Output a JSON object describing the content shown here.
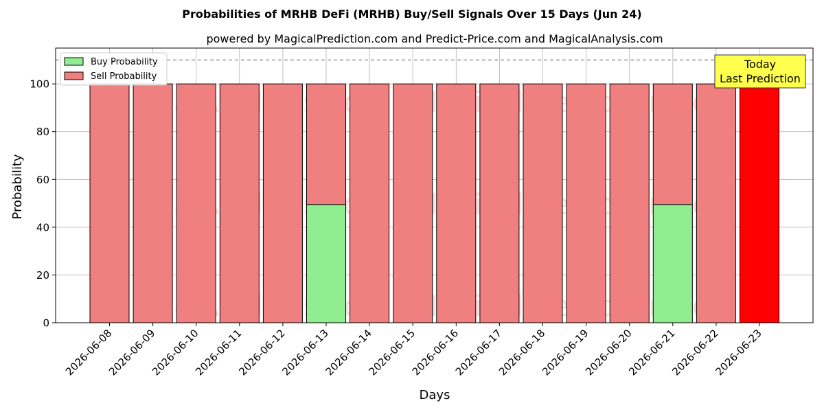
{
  "chart_data": {
    "type": "bar",
    "title": "Probabilities of MRHB DeFi (MRHB) Buy/Sell Signals Over 15 Days (Jun 24)",
    "subtitle": "powered by MagicalPrediction.com and Predict-Price.com and MagicalAnalysis.com",
    "xlabel": "Days",
    "ylabel": "Probability",
    "ylim": [
      0,
      115
    ],
    "yticks": [
      0,
      20,
      40,
      60,
      80,
      100
    ],
    "grid": true,
    "legend_position": "top-left",
    "stacked": true,
    "categories": [
      "2026-06-08",
      "2026-06-09",
      "2026-06-10",
      "2026-06-11",
      "2026-06-12",
      "2026-06-13",
      "2026-06-14",
      "2026-06-15",
      "2026-06-16",
      "2026-06-17",
      "2026-06-18",
      "2026-06-19",
      "2026-06-20",
      "2026-06-21",
      "2026-06-22",
      "2026-06-23"
    ],
    "series": [
      {
        "name": "Buy Probability",
        "color": "#90ee90",
        "values": [
          0,
          0,
          0,
          0,
          0,
          49.5,
          0,
          0,
          0,
          0,
          0,
          0,
          0,
          49.5,
          0,
          0
        ]
      },
      {
        "name": "Sell Probability",
        "color": "#f08080",
        "values": [
          100,
          100,
          100,
          100,
          100,
          50.5,
          100,
          100,
          100,
          100,
          100,
          100,
          100,
          50.5,
          100,
          100
        ]
      }
    ],
    "highlight": {
      "index": 15,
      "color": "#ff0000"
    },
    "reference_line": {
      "y": 110,
      "style": "dashed",
      "color": "#808080"
    },
    "annotation": {
      "lines": [
        "Today",
        "Last Prediction"
      ],
      "background": "#ffff4d"
    },
    "watermarks": [
      "MagicalAnalysis.com",
      "MagicalPrediction.com"
    ]
  }
}
